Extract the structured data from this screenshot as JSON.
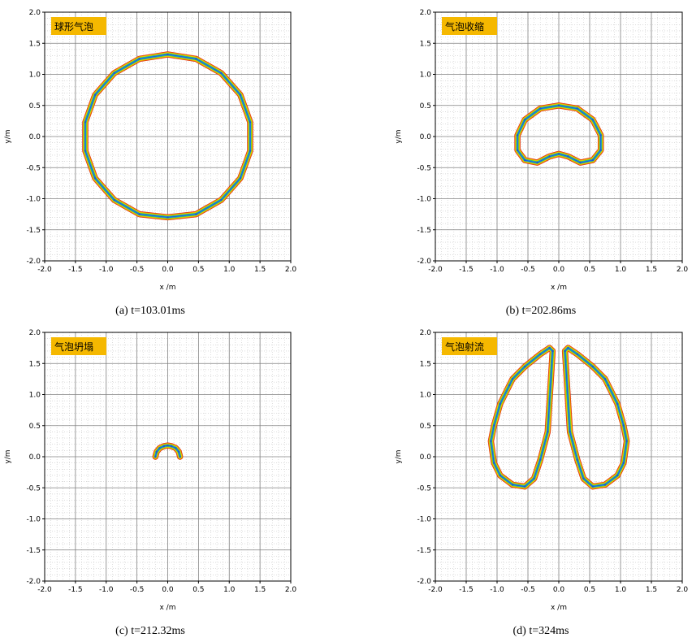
{
  "figure": {
    "panels": [
      {
        "badge": "球形气泡",
        "caption": "(a) t=103.01ms",
        "xlabel": "x /m",
        "ylabel": "y/m"
      },
      {
        "badge": "气泡收缩",
        "caption": "(b) t=202.86ms",
        "xlabel": "x /m",
        "ylabel": "y/m"
      },
      {
        "badge": "气泡坍塌",
        "caption": "(c) t=212.32ms",
        "xlabel": "x /m",
        "ylabel": "y/m"
      },
      {
        "badge": "气泡射流",
        "caption": "(d) t=324ms",
        "xlabel": "x /m",
        "ylabel": "y/m"
      }
    ],
    "colors": {
      "badge_fill": "#f5b800",
      "grid_major": "#808080",
      "grid_minor": "#c8c8c8",
      "interface_outer": "#e03010",
      "interface_mid1": "#f0a000",
      "interface_mid2": "#d8e000",
      "interface_mid3": "#40c040",
      "interface_inner": "#18a0e0",
      "interface_core": "#2050e0"
    }
  },
  "chart_data": [
    {
      "type": "scatter",
      "title": "球形气泡",
      "xlabel": "x /m",
      "ylabel": "y/m",
      "xlim": [
        -2.0,
        2.0
      ],
      "ylim": [
        -2.0,
        2.0
      ],
      "xticks": [
        "-2.0",
        "-1.5",
        "-1.0",
        "-0.5",
        "0.0",
        "0.5",
        "1.0",
        "1.5",
        "2.0"
      ],
      "yticks": [
        "-2.0",
        "-1.5",
        "-1.0",
        "-0.5",
        "0.0",
        "0.5",
        "1.0",
        "1.5",
        "2.0"
      ],
      "grid": true,
      "series": [
        {
          "x": [
            0.0,
            0.46,
            0.87,
            1.18,
            1.34,
            1.34,
            1.18,
            0.87,
            0.46,
            0.0,
            -0.46,
            -0.87,
            -1.18,
            -1.34,
            -1.34,
            -1.18,
            -0.87,
            -0.46,
            0.0
          ],
          "y": [
            1.32,
            1.25,
            1.02,
            0.67,
            0.23,
            -0.23,
            -0.67,
            -1.02,
            -1.25,
            -1.3,
            -1.25,
            -1.02,
            -0.67,
            -0.23,
            0.23,
            0.67,
            1.02,
            1.25,
            1.32
          ]
        }
      ]
    },
    {
      "type": "scatter",
      "title": "气泡收缩",
      "xlabel": "x /m",
      "ylabel": "y/m",
      "xlim": [
        -2.0,
        2.0
      ],
      "ylim": [
        -2.0,
        2.0
      ],
      "xticks": [
        "-2.0",
        "-1.5",
        "-1.0",
        "-0.5",
        "0.0",
        "0.5",
        "1.0",
        "1.5",
        "2.0"
      ],
      "yticks": [
        "-2.0",
        "-1.5",
        "-1.0",
        "-0.5",
        "0.0",
        "0.5",
        "1.0",
        "1.5",
        "2.0"
      ],
      "grid": true,
      "series": [
        {
          "x": [
            0.0,
            0.3,
            0.55,
            0.68,
            0.68,
            0.55,
            0.35,
            0.15,
            0.0,
            -0.15,
            -0.35,
            -0.55,
            -0.67,
            -0.67,
            -0.55,
            -0.3,
            0.0
          ],
          "y": [
            0.5,
            0.45,
            0.27,
            0.02,
            -0.22,
            -0.38,
            -0.42,
            -0.32,
            -0.28,
            -0.32,
            -0.42,
            -0.38,
            -0.22,
            0.02,
            0.27,
            0.45,
            0.5
          ]
        }
      ]
    },
    {
      "type": "scatter",
      "title": "气泡坍塌",
      "xlabel": "x /m",
      "ylabel": "y/m",
      "xlim": [
        -2.0,
        2.0
      ],
      "ylim": [
        -2.0,
        2.0
      ],
      "xticks": [
        "-2.0",
        "-1.5",
        "-1.0",
        "-0.5",
        "0.0",
        "0.5",
        "1.0",
        "1.5",
        "2.0"
      ],
      "yticks": [
        "-2.0",
        "-1.5",
        "-1.0",
        "-0.5",
        "0.0",
        "0.5",
        "1.0",
        "1.5",
        "2.0"
      ],
      "grid": true,
      "series": [
        {
          "x": [
            -0.2,
            -0.18,
            -0.13,
            -0.06,
            0.0,
            0.06,
            0.13,
            0.18,
            0.2
          ],
          "y": [
            0.0,
            0.08,
            0.14,
            0.17,
            0.18,
            0.17,
            0.14,
            0.08,
            0.0
          ]
        }
      ]
    },
    {
      "type": "scatter",
      "title": "气泡射流",
      "xlabel": "x /m",
      "ylabel": "y/m",
      "xlim": [
        -2.0,
        2.0
      ],
      "ylim": [
        -2.0,
        2.0
      ],
      "xticks": [
        "-2.0",
        "-1.5",
        "-1.0",
        "-0.5",
        "0.0",
        "0.5",
        "1.0",
        "1.5",
        "2.0"
      ],
      "yticks": [
        "-2.0",
        "-1.5",
        "-1.0",
        "-0.5",
        "0.0",
        "0.5",
        "1.0",
        "1.5",
        "2.0"
      ],
      "grid": true,
      "series": [
        {
          "x": [
            -0.1,
            -0.15,
            -0.3,
            -0.55,
            -0.75,
            -0.8,
            -0.95,
            -1.05,
            -1.1,
            -1.05,
            -0.95,
            -0.75,
            -0.55,
            -0.4,
            -0.3,
            -0.18,
            -0.1
          ],
          "y": [
            1.7,
            1.75,
            1.65,
            1.45,
            1.25,
            1.15,
            0.85,
            0.5,
            0.25,
            -0.1,
            -0.3,
            -0.45,
            -0.48,
            -0.35,
            -0.05,
            0.4,
            1.7
          ]
        },
        {
          "x": [
            0.1,
            0.15,
            0.3,
            0.55,
            0.75,
            0.8,
            0.95,
            1.05,
            1.1,
            1.05,
            0.95,
            0.75,
            0.55,
            0.4,
            0.3,
            0.18,
            0.1
          ],
          "y": [
            1.7,
            1.75,
            1.65,
            1.45,
            1.25,
            1.15,
            0.85,
            0.5,
            0.25,
            -0.1,
            -0.3,
            -0.45,
            -0.48,
            -0.35,
            -0.05,
            0.4,
            1.7
          ]
        }
      ]
    }
  ]
}
